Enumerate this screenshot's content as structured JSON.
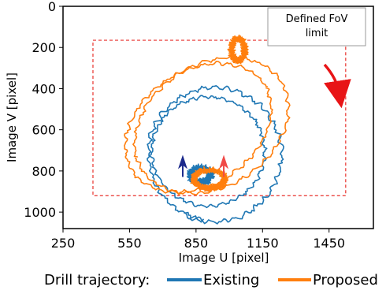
{
  "chart_data": {
    "type": "line",
    "xlabel": "Image U [pixel]",
    "ylabel": "Image V [pixel]",
    "xlim": [
      250,
      1650
    ],
    "ylim": [
      1080,
      0
    ],
    "y_inverted": true,
    "xticks": [
      250,
      550,
      850,
      1150,
      1450
    ],
    "yticks": [
      0,
      200,
      400,
      600,
      800,
      1000
    ],
    "grid": false,
    "fov_limit": {
      "label": "Defined FoV limit",
      "u_range": [
        385,
        1525
      ],
      "v_range": [
        165,
        920
      ],
      "color": "#e8322d"
    },
    "legend": {
      "prefix": "Drill trajectory:",
      "placement": "bottom-outside"
    },
    "series": [
      {
        "name": "Existing",
        "color": "#1f77b4",
        "loops": [
          {
            "cu": 935,
            "cv": 720,
            "ru": 300,
            "rv": 325,
            "start_deg": 100,
            "turns": 1.05,
            "amp": 14
          },
          {
            "cu": 905,
            "cv": 705,
            "ru": 255,
            "rv": 265,
            "start_deg": 240,
            "turns": 1.0,
            "amp": 10
          },
          {
            "cu": 870,
            "cv": 820,
            "ru": 45,
            "rv": 35,
            "start_deg": 0,
            "turns": 2.5,
            "amp": 18
          }
        ],
        "arrow": {
          "u": 790,
          "v": 760,
          "color": "#1c2a8c"
        }
      },
      {
        "name": "Proposed",
        "color": "#ff7f0e",
        "loops": [
          {
            "cu": 920,
            "cv": 580,
            "ru": 380,
            "rv": 290,
            "start_deg": 200,
            "turns": 1.0,
            "amp": 10,
            "tilt": -40
          },
          {
            "cu": 860,
            "cv": 590,
            "ru": 365,
            "rv": 270,
            "start_deg": 10,
            "turns": 1.0,
            "amp": 10,
            "tilt": -40
          },
          {
            "cu": 1040,
            "cv": 210,
            "ru": 30,
            "rv": 55,
            "start_deg": 0,
            "turns": 2.0,
            "amp": 16
          },
          {
            "cu": 910,
            "cv": 840,
            "ru": 70,
            "rv": 45,
            "start_deg": 0,
            "turns": 2.5,
            "amp": 16
          }
        ],
        "arrow": {
          "u": 975,
          "v": 760,
          "color": "#f04a48"
        }
      }
    ]
  }
}
